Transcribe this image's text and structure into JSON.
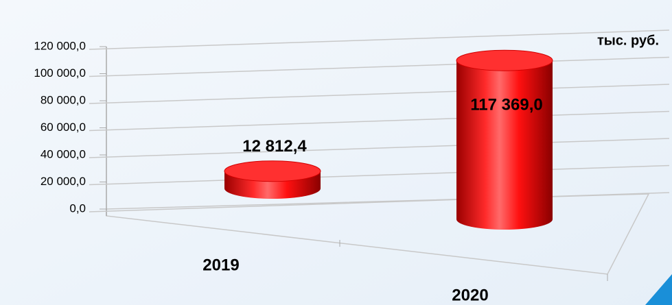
{
  "chart_data": {
    "type": "cylinder",
    "unit_label": "тыс. руб.",
    "categories": [
      "2019",
      "2020"
    ],
    "values": [
      12812.4,
      117369.0
    ],
    "value_labels": [
      "12 812,4",
      "117 369,0"
    ],
    "color": "#ff0000",
    "ylim": [
      0,
      120000
    ],
    "yticks": [
      {
        "value": 0,
        "label": "0,0"
      },
      {
        "value": 20000,
        "label": "20 000,0"
      },
      {
        "value": 40000,
        "label": "40 000,0"
      },
      {
        "value": 60000,
        "label": "60 000,0"
      },
      {
        "value": 80000,
        "label": "80 000,0"
      },
      {
        "value": 100000,
        "label": "100 000,0"
      },
      {
        "value": 120000,
        "label": "120 000,0"
      }
    ],
    "grid": true
  }
}
